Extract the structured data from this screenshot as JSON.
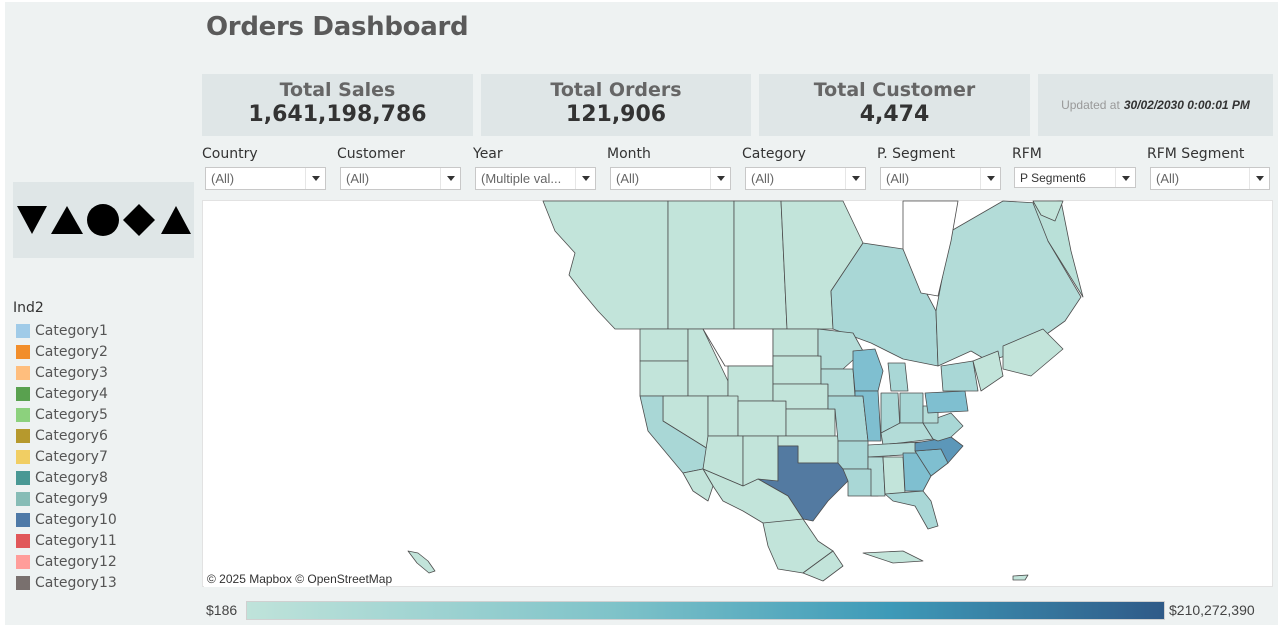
{
  "dashboard": {
    "title": "Orders Dashboard"
  },
  "kpis": [
    {
      "label": "Total Sales",
      "value": "1,641,198,786"
    },
    {
      "label": "Total Orders",
      "value": "121,906"
    },
    {
      "label": "Total Customer",
      "value": "4,474"
    }
  ],
  "updated": {
    "prefix": "Updated at",
    "timestamp": "30/02/2030 0:00:01 PM"
  },
  "filters": [
    {
      "label": "Country",
      "value": "(All)"
    },
    {
      "label": "Customer",
      "value": "(All)"
    },
    {
      "label": "Year",
      "value": "(Multiple val..."
    },
    {
      "label": "Month",
      "value": "(All)"
    },
    {
      "label": "Category",
      "value": "(All)"
    },
    {
      "label": "P. Segment",
      "value": "(All)"
    },
    {
      "label": "RFM",
      "value": "P Segment6"
    },
    {
      "label": "RFM Segment",
      "value": "(All)"
    }
  ],
  "logo": {
    "shapes": [
      "down-triangle",
      "up-triangle",
      "circle",
      "diamond",
      "up-triangle"
    ],
    "color": "#000000"
  },
  "legend": {
    "title": "Ind2",
    "items": [
      {
        "label": "Category1",
        "color": "#a0cbe8"
      },
      {
        "label": "Category2",
        "color": "#f28e2b"
      },
      {
        "label": "Category3",
        "color": "#ffbe7d"
      },
      {
        "label": "Category4",
        "color": "#59a14f"
      },
      {
        "label": "Category5",
        "color": "#8cd17d"
      },
      {
        "label": "Category6",
        "color": "#b6992d"
      },
      {
        "label": "Category7",
        "color": "#f1ce63"
      },
      {
        "label": "Category8",
        "color": "#499894"
      },
      {
        "label": "Category9",
        "color": "#86bcb6"
      },
      {
        "label": "Category10",
        "color": "#4e79a7"
      },
      {
        "label": "Category11",
        "color": "#e15759"
      },
      {
        "label": "Category12",
        "color": "#ff9d9a"
      },
      {
        "label": "Category13",
        "color": "#79706e"
      }
    ]
  },
  "map": {
    "credit": "© 2025 Mapbox © OpenStreetMap",
    "colors": {
      "base": "#c2e4da",
      "light": "#a9d7d6",
      "mid": "#7fbfd0",
      "high": "#5c97b9",
      "max": "#537aa1",
      "border": "#4d4d4d"
    }
  },
  "color_scale": {
    "min": "$186",
    "max": "$210,272,390"
  }
}
